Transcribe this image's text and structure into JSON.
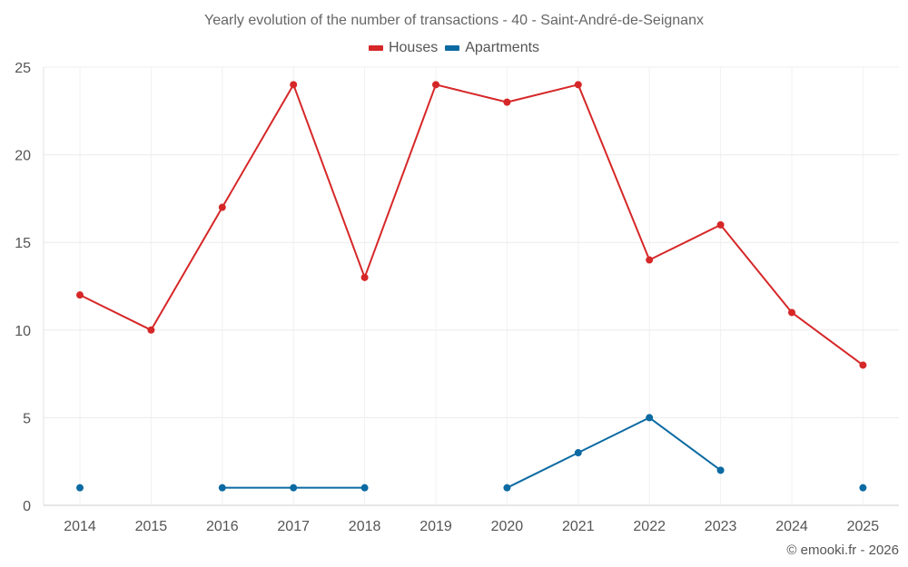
{
  "chart_data": {
    "type": "line",
    "title": "Yearly evolution of the number of transactions - 40 - Saint-André-de-Seignanx",
    "xlabel": "",
    "ylabel": "",
    "categories": [
      "2014",
      "2015",
      "2016",
      "2017",
      "2018",
      "2019",
      "2020",
      "2021",
      "2022",
      "2023",
      "2024",
      "2025"
    ],
    "ylim": [
      0,
      25
    ],
    "yticks": [
      0,
      5,
      10,
      15,
      20,
      25
    ],
    "grid": true,
    "legend_position": "top-center",
    "series": [
      {
        "name": "Houses",
        "color": "#d62728",
        "values": [
          12,
          10,
          17,
          24,
          13,
          24,
          23,
          24,
          14,
          16,
          11,
          8
        ]
      },
      {
        "name": "Apartments",
        "color": "#0b6aa2",
        "values": [
          1,
          null,
          1,
          1,
          1,
          null,
          1,
          3,
          5,
          2,
          null,
          1
        ]
      }
    ]
  },
  "footer": {
    "credit": "© emooki.fr - 2026"
  }
}
